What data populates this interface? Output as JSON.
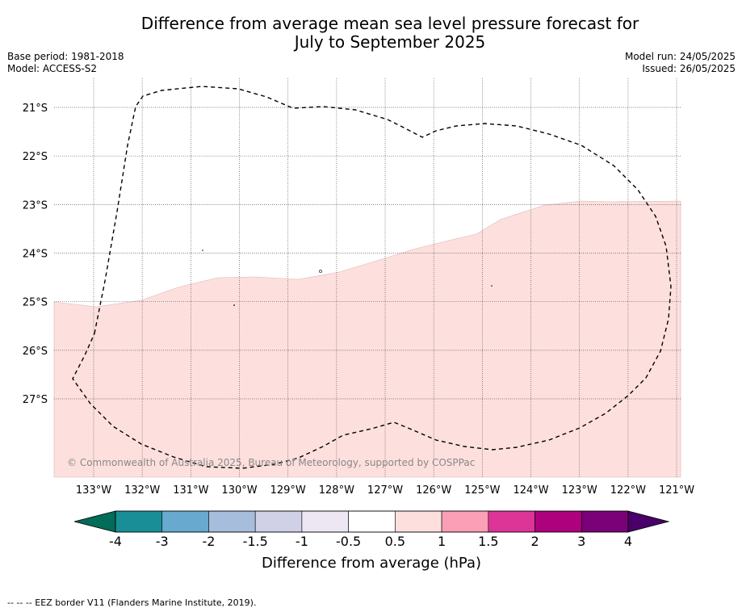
{
  "title_line1": "Difference from average mean sea level pressure forecast for",
  "title_line2": "July to September 2025",
  "base_period": "Base period: 1981-2018",
  "model": "Model: ACCESS-S2",
  "model_run": "Model run: 24/05/2025",
  "issued": "Issued: 26/05/2025",
  "map": {
    "lon_labels": [
      "133°W",
      "132°W",
      "131°W",
      "130°W",
      "129°W",
      "128°W",
      "127°W",
      "126°W",
      "125°W",
      "124°W",
      "123°W",
      "122°W",
      "121°W"
    ],
    "lat_labels": [
      "21°S",
      "22°S",
      "23°S",
      "24°S",
      "25°S",
      "26°S",
      "27°S"
    ],
    "copyright": "© Commonwealth of Australia 2025, Bureau of Meteorology, supported by COSPPac",
    "anomaly_fill_color": "#fde0dd",
    "eez_line_color": "#000000"
  },
  "colorbar": {
    "label": "Difference from average (hPa)",
    "ticks": [
      "-4",
      "-3",
      "-2",
      "-1.5",
      "-1",
      "-0.5",
      "0.5",
      "1",
      "1.5",
      "2",
      "3",
      "4"
    ],
    "colors": [
      "#1a8e96",
      "#67a9cf",
      "#a6bddb",
      "#d0d1e6",
      "#ece7f2",
      "#ffffff",
      "#fde0dd",
      "#fa9fb5",
      "#dd3497",
      "#ae017e",
      "#7a0177"
    ],
    "low_extend_color": "#016c59",
    "high_extend_color": "#49006a"
  },
  "footnote": "--  --  -- EEZ border V11 (Flanders Marine Institute, 2019)."
}
